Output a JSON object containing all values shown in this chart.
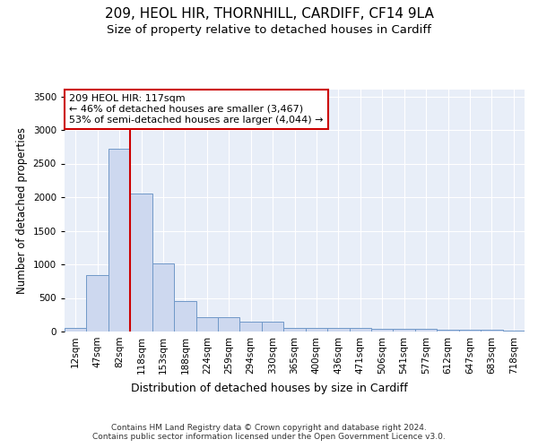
{
  "title1": "209, HEOL HIR, THORNHILL, CARDIFF, CF14 9LA",
  "title2": "Size of property relative to detached houses in Cardiff",
  "xlabel": "Distribution of detached houses by size in Cardiff",
  "ylabel": "Number of detached properties",
  "categories": [
    "12sqm",
    "47sqm",
    "82sqm",
    "118sqm",
    "153sqm",
    "188sqm",
    "224sqm",
    "259sqm",
    "294sqm",
    "330sqm",
    "365sqm",
    "400sqm",
    "436sqm",
    "471sqm",
    "506sqm",
    "541sqm",
    "577sqm",
    "612sqm",
    "647sqm",
    "683sqm",
    "718sqm"
  ],
  "values": [
    60,
    840,
    2720,
    2050,
    1010,
    450,
    215,
    215,
    145,
    145,
    60,
    60,
    55,
    50,
    45,
    40,
    35,
    30,
    25,
    22,
    20
  ],
  "bar_color": "#cdd8ef",
  "bar_edge_color": "#7098c8",
  "vline_color": "#cc0000",
  "annotation_text": "209 HEOL HIR: 117sqm\n← 46% of detached houses are smaller (3,467)\n53% of semi-detached houses are larger (4,044) →",
  "annotation_box_color": "white",
  "annotation_box_edge": "#cc0000",
  "ylim": [
    0,
    3600
  ],
  "yticks": [
    0,
    500,
    1000,
    1500,
    2000,
    2500,
    3000,
    3500
  ],
  "bg_color": "#e8eef8",
  "footer": "Contains HM Land Registry data © Crown copyright and database right 2024.\nContains public sector information licensed under the Open Government Licence v3.0.",
  "title1_fontsize": 11,
  "title2_fontsize": 9.5,
  "xlabel_fontsize": 9,
  "ylabel_fontsize": 8.5,
  "tick_fontsize": 7.5,
  "footer_fontsize": 6.5,
  "annot_fontsize": 8
}
